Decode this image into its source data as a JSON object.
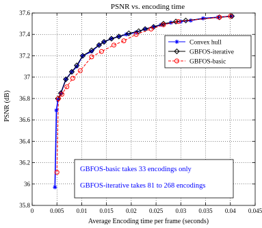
{
  "chart_data": {
    "type": "line",
    "title": "PSNR vs. encoding time",
    "xlabel": "Average Encoding time per frame (seconds)",
    "ylabel": "PSNR (dB)",
    "xlim": [
      0,
      0.045
    ],
    "ylim": [
      35.8,
      37.6
    ],
    "xticks": [
      0,
      0.005,
      0.01,
      0.015,
      0.02,
      0.025,
      0.03,
      0.035,
      0.04,
      0.045
    ],
    "xtick_labels": [
      "0",
      "0.005",
      "0.01",
      "0.015",
      "0.02",
      "0.025",
      "0.03",
      "0.035",
      "0.04",
      "0.045"
    ],
    "yticks": [
      35.8,
      36,
      36.2,
      36.4,
      36.6,
      36.8,
      37,
      37.2,
      37.4,
      37.6
    ],
    "ytick_labels": [
      "35.8",
      "36",
      "36.2",
      "36.4",
      "36.6",
      "36.8",
      "37",
      "37.2",
      "37.4",
      "37.6"
    ],
    "grid": true,
    "legend_position": "top-right",
    "series": [
      {
        "name": "Convex hull",
        "color": "#0000ff",
        "line_style": "solid",
        "marker": "star",
        "x": [
          0.0046,
          0.0049,
          0.0052,
          0.0058,
          0.0068,
          0.008,
          0.009,
          0.0102,
          0.012,
          0.0135,
          0.0145,
          0.016,
          0.0175,
          0.019,
          0.021,
          0.0228,
          0.0245,
          0.026,
          0.028,
          0.03,
          0.032,
          0.0345,
          0.0375,
          0.0403
        ],
        "y": [
          35.97,
          36.69,
          36.79,
          36.85,
          36.98,
          37.05,
          37.1,
          37.2,
          37.24,
          37.3,
          37.33,
          37.36,
          37.38,
          37.4,
          37.42,
          37.45,
          37.47,
          37.49,
          37.51,
          37.52,
          37.53,
          37.55,
          37.56,
          37.57
        ]
      },
      {
        "name": "GBFOS-iterative",
        "color": "#000000",
        "line_style": "solid",
        "marker": "diamond",
        "x": [
          0.0052,
          0.0058,
          0.0068,
          0.008,
          0.009,
          0.0102,
          0.012,
          0.0135,
          0.0145,
          0.016,
          0.0175,
          0.0195,
          0.0215,
          0.0228,
          0.0245,
          0.0265,
          0.029,
          0.031,
          0.0378,
          0.0403
        ],
        "y": [
          36.8,
          36.85,
          36.98,
          37.05,
          37.11,
          37.2,
          37.25,
          37.3,
          37.33,
          37.36,
          37.38,
          37.41,
          37.43,
          37.45,
          37.47,
          37.5,
          37.52,
          37.53,
          37.56,
          37.57
        ]
      },
      {
        "name": "GBFOS-basic",
        "color": "#ff0000",
        "line_style": "dashed",
        "marker": "circle",
        "x": [
          0.005,
          0.0053,
          0.006,
          0.007,
          0.0082,
          0.0097,
          0.012,
          0.014,
          0.0165,
          0.0185,
          0.021,
          0.024,
          0.0265,
          0.0295,
          0.0378,
          0.04
        ],
        "y": [
          36.11,
          36.8,
          36.84,
          36.91,
          36.99,
          37.06,
          37.19,
          37.24,
          37.3,
          37.34,
          37.4,
          37.45,
          37.49,
          37.52,
          37.56,
          37.57
        ]
      }
    ],
    "annotations": [
      "GBFOS-basic takes 33 encodings only",
      "GBFOS-iterative takes 81 to 268 encodings"
    ]
  }
}
